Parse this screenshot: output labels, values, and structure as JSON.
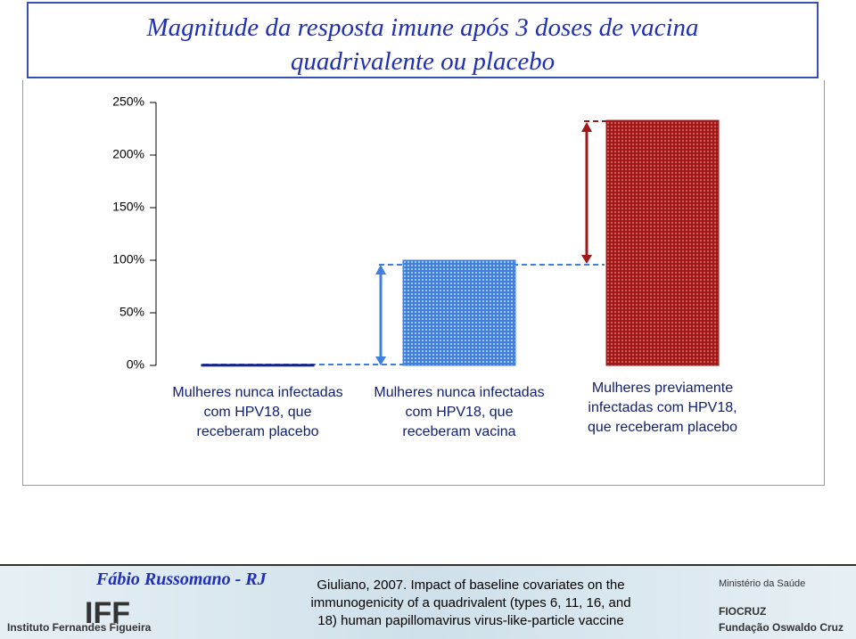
{
  "chart_data": {
    "type": "bar",
    "title": "Magnitude da resposta imune após 3 doses de vacina quadrivalente ou placebo",
    "categories": [
      "Mulheres nunca infectadas com HPV18, que receberam placebo",
      "Mulheres nunca infectadas com HPV18, que receberam vacina",
      "Mulheres previamente infectadas com HPV18, que receberam placebo"
    ],
    "values": [
      1,
      100,
      233
    ],
    "colors": [
      "#1a237e",
      "#3f7fe0",
      "#a01818"
    ],
    "ylim": [
      0,
      250
    ],
    "yticks": [
      {
        "value": 0,
        "label": "0%"
      },
      {
        "value": 50,
        "label": "50%"
      },
      {
        "value": 100,
        "label": "100%"
      },
      {
        "value": 150,
        "label": "150%"
      },
      {
        "value": 200,
        "label": "200%"
      },
      {
        "value": 250,
        "label": "250%"
      }
    ]
  },
  "footer": {
    "author": "Fábio Russomano - RJ",
    "citation": "Giuliano, 2007. Impact of baseline covariates on the immunogenicity of a quadrivalent (types 6, 11, 16, and 18) human papillomavirus virus-like-particle vaccine",
    "left_logo": "IFF",
    "left_institution": "Instituto Fernandes Figueira",
    "right_ministry": "Ministério da Saúde",
    "right_logo": "FIOCRUZ",
    "right_institution": "Fundação Oswaldo Cruz"
  }
}
